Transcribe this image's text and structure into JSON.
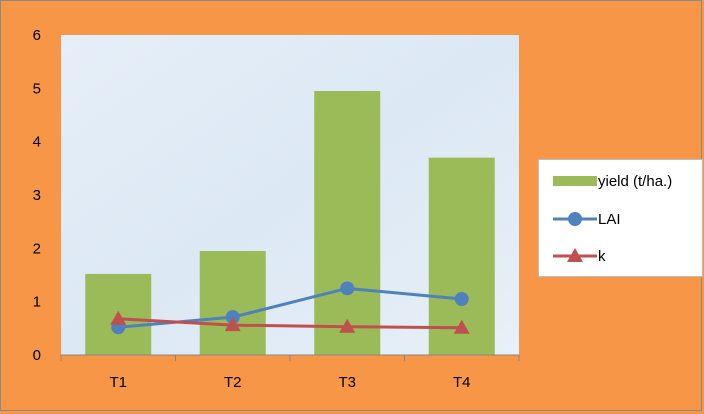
{
  "chart_data": {
    "type": "bar",
    "categories": [
      "T1",
      "T2",
      "T3",
      "T4"
    ],
    "series": [
      {
        "name": "yield (t/ha.)",
        "type": "bar",
        "color": "#9BBB59",
        "values": [
          1.52,
          1.95,
          4.95,
          3.7
        ]
      },
      {
        "name": "LAI",
        "type": "line",
        "marker": "circle",
        "color": "#4F81BD",
        "values": [
          0.52,
          0.71,
          1.25,
          1.05
        ]
      },
      {
        "name": "k",
        "type": "line",
        "marker": "triangle",
        "color": "#C0504D",
        "values": [
          0.68,
          0.56,
          0.53,
          0.51
        ]
      }
    ],
    "y_ticks": [
      "0",
      "1",
      "2",
      "3",
      "4",
      "5",
      "6"
    ],
    "ylim": [
      0,
      6
    ],
    "title": "",
    "xlabel": "",
    "ylabel": "",
    "grid": false,
    "legend_position": "right"
  }
}
